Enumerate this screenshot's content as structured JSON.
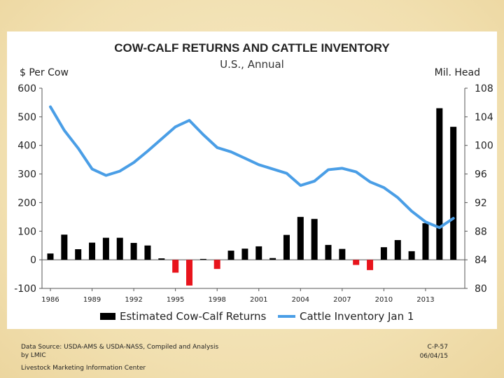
{
  "footer": {
    "source_line1": "Data Source:  USDA-AMS & USDA-NASS, Compiled and Analysis",
    "source_line2": "by LMIC",
    "org": "Livestock Marketing Information Center",
    "code": "C-P-57",
    "date": "06/04/15"
  },
  "chart_data": {
    "type": "bar+line",
    "title": "COW-CALF RETURNS AND CATTLE INVENTORY",
    "subtitle": "U.S., Annual",
    "ylabel_left": "$ Per Cow",
    "ylabel_right": "Mil. Head",
    "ylim_left": [
      -100,
      600
    ],
    "ylim_right": [
      80,
      108
    ],
    "yticks_left": [
      "600",
      "500",
      "400",
      "300",
      "200",
      "100",
      "0",
      "-100"
    ],
    "yticks_right": [
      "108",
      "104",
      "100",
      "96",
      "92",
      "88",
      "84",
      "80"
    ],
    "x": [
      1986,
      1987,
      1988,
      1989,
      1990,
      1991,
      1992,
      1993,
      1994,
      1995,
      1996,
      1997,
      1998,
      1999,
      2000,
      2001,
      2002,
      2003,
      2004,
      2005,
      2006,
      2007,
      2008,
      2009,
      2010,
      2011,
      2012,
      2013,
      2014,
      2015
    ],
    "xtick_labels": [
      "1986",
      "1989",
      "1992",
      "1995",
      "1998",
      "2001",
      "2004",
      "2007",
      "2010",
      "2013"
    ],
    "xtick_years": [
      1986,
      1989,
      1992,
      1995,
      1998,
      2001,
      2004,
      2007,
      2010,
      2013
    ],
    "series": [
      {
        "name": "Estimated Cow-Calf Returns",
        "kind": "bar",
        "color_positive": "#000000",
        "color_negative": "#e8141c",
        "values": [
          22,
          88,
          37,
          60,
          77,
          77,
          59,
          50,
          5,
          -45,
          -90,
          3,
          -32,
          32,
          39,
          47,
          6,
          87,
          150,
          143,
          52,
          38,
          -18,
          -36,
          44,
          69,
          30,
          128,
          530,
          465
        ]
      },
      {
        "name": "Cattle Inventory Jan 1",
        "kind": "line",
        "axis": "right",
        "color": "#4a9ee6",
        "values": [
          105.4,
          102.1,
          99.6,
          96.7,
          95.8,
          96.4,
          97.6,
          99.2,
          100.9,
          102.6,
          103.5,
          101.5,
          99.7,
          99.1,
          98.2,
          97.3,
          96.7,
          96.1,
          94.4,
          95.0,
          96.6,
          96.8,
          96.3,
          94.9,
          94.1,
          92.7,
          90.8,
          89.3,
          88.5,
          89.8
        ]
      }
    ],
    "legend": [
      "Estimated Cow-Calf Returns",
      "Cattle Inventory Jan 1"
    ],
    "legend_position": "bottom"
  }
}
